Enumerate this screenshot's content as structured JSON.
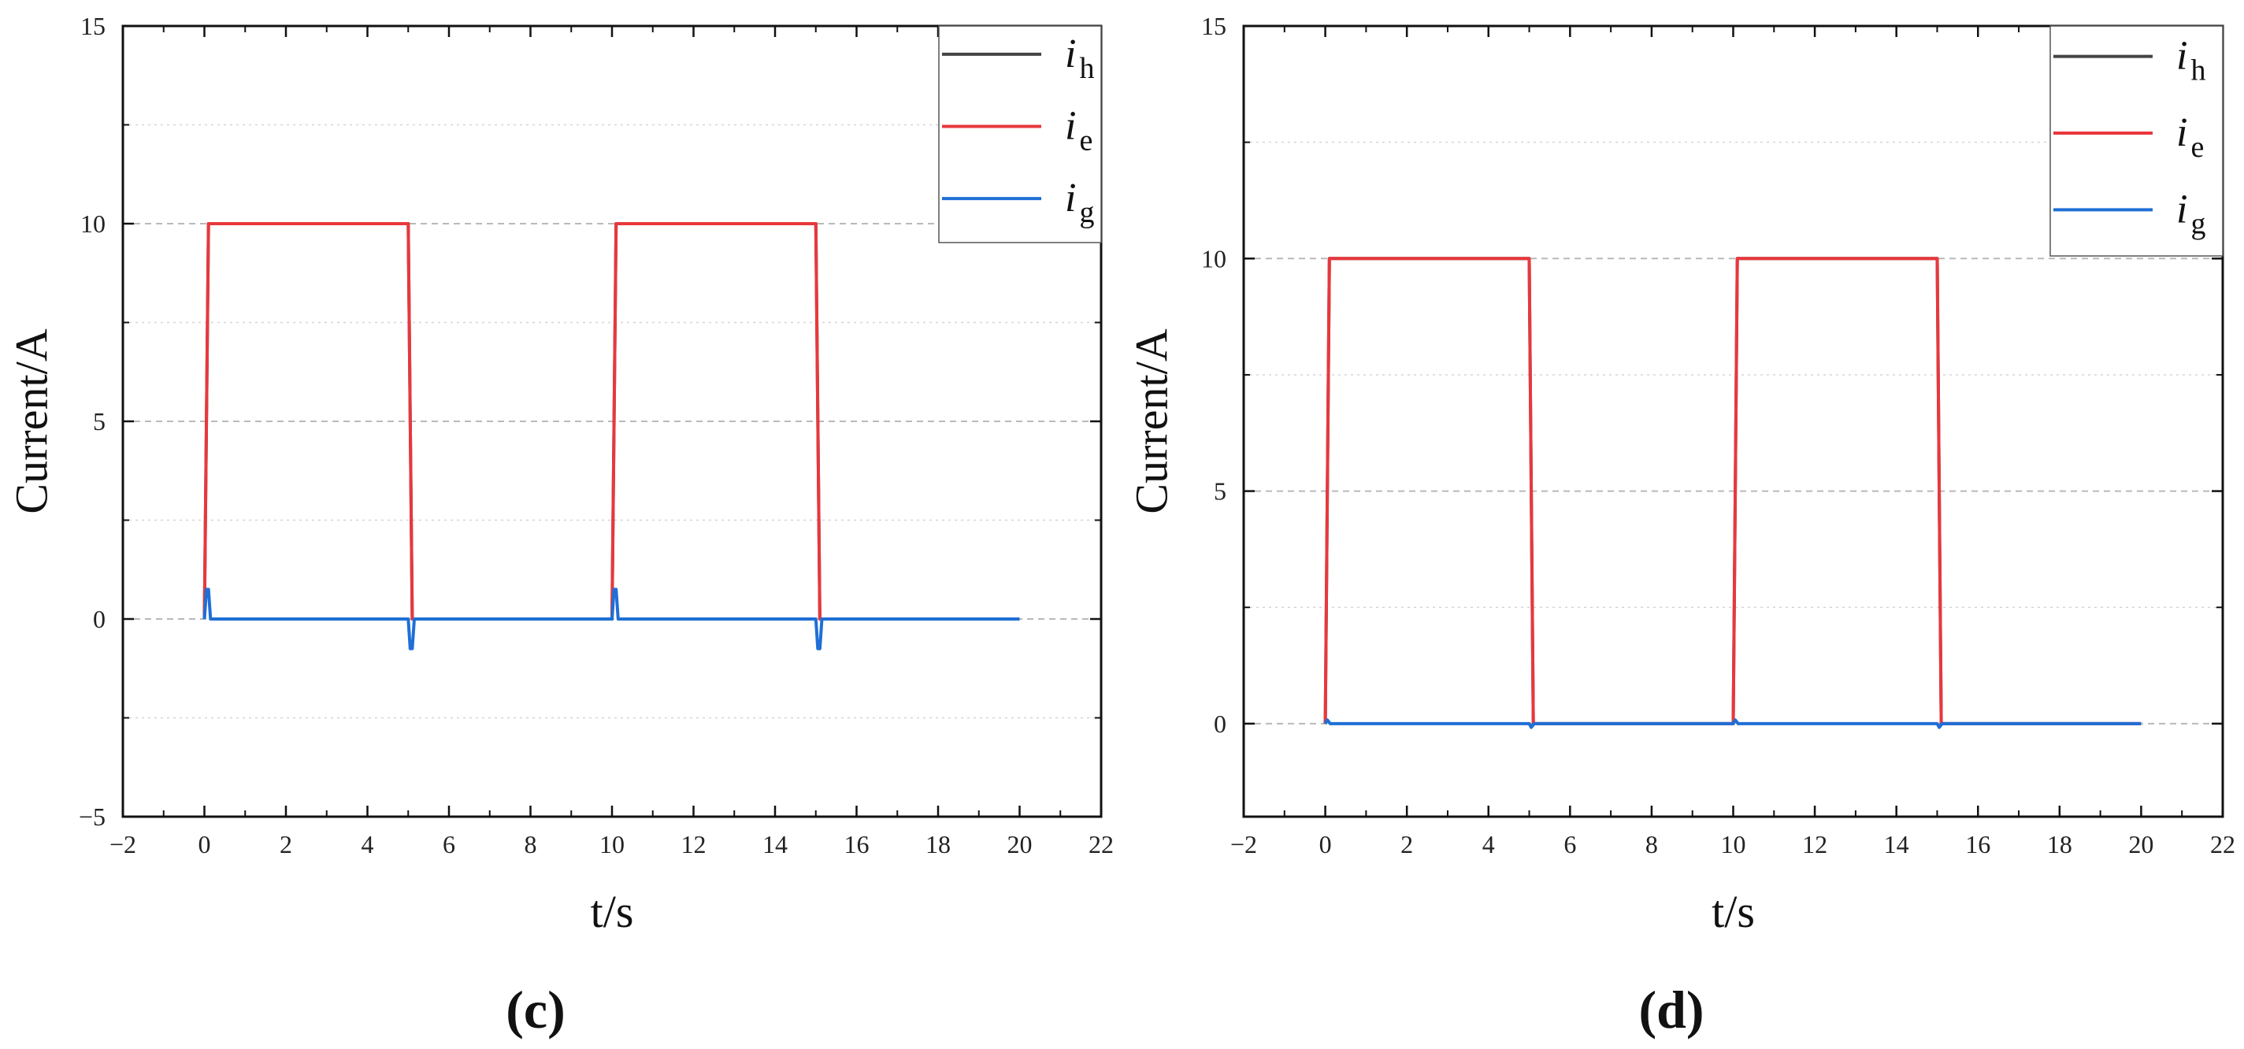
{
  "chart_data": [
    {
      "type": "line",
      "panel_label": "(c)",
      "xlabel": "t/s",
      "ylabel": "Current/A",
      "xlim": [
        -2,
        22
      ],
      "ylim": [
        -5,
        15
      ],
      "xticks": [
        -2,
        0,
        2,
        4,
        6,
        8,
        10,
        12,
        14,
        16,
        18,
        20,
        22
      ],
      "xtick_labels": [
        "−2",
        "0",
        "2",
        "4",
        "6",
        "8",
        "10",
        "12",
        "14",
        "16",
        "18",
        "20",
        "22"
      ],
      "yticks": [
        -5,
        0,
        5,
        10,
        15
      ],
      "ytick_labels": [
        "−5",
        "0",
        "5",
        "10",
        "15"
      ],
      "grid": true,
      "legend_position": "top-right",
      "legend": [
        {
          "symbol": "i",
          "subscript": "h",
          "color": "#444444"
        },
        {
          "symbol": "i",
          "subscript": "e",
          "color": "#e8383d"
        },
        {
          "symbol": "i",
          "subscript": "g",
          "color": "#1f6fd6"
        }
      ],
      "series": [
        {
          "name": "ih",
          "color": "#444444",
          "x": [
            0,
            0.1,
            5.0,
            5.1,
            10.0,
            10.1,
            15.0,
            15.1,
            20.0
          ],
          "y": [
            0,
            10,
            10,
            0,
            0,
            10,
            10,
            0,
            0
          ]
        },
        {
          "name": "ie",
          "color": "#e8383d",
          "x": [
            0,
            0.1,
            5.0,
            5.1,
            10.0,
            10.1,
            15.0,
            15.1,
            20.0
          ],
          "y": [
            0,
            10,
            10,
            0,
            0,
            10,
            10,
            0,
            0
          ]
        },
        {
          "name": "ig",
          "color": "#1f6fd6",
          "x": [
            0,
            0.05,
            0.1,
            0.15,
            0.2,
            5.0,
            5.05,
            5.1,
            5.15,
            10.0,
            10.05,
            10.1,
            10.15,
            10.2,
            15.0,
            15.05,
            15.1,
            15.15,
            20.0
          ],
          "y": [
            0,
            0.75,
            0.75,
            0,
            0,
            0,
            -0.75,
            -0.75,
            0,
            0,
            0.75,
            0.75,
            0,
            0,
            0,
            -0.75,
            -0.75,
            0,
            0
          ]
        }
      ]
    },
    {
      "type": "line",
      "panel_label": "(d)",
      "xlabel": "t/s",
      "ylabel": "Current/A",
      "xlim": [
        -2,
        22
      ],
      "ylim": [
        -2,
        15
      ],
      "xticks": [
        -2,
        0,
        2,
        4,
        6,
        8,
        10,
        12,
        14,
        16,
        18,
        20,
        22
      ],
      "xtick_labels": [
        "−2",
        "0",
        "2",
        "4",
        "6",
        "8",
        "10",
        "12",
        "14",
        "16",
        "18",
        "20",
        "22"
      ],
      "yticks": [
        0,
        5,
        10,
        15
      ],
      "ytick_labels": [
        "0",
        "5",
        "10",
        "15"
      ],
      "grid": true,
      "legend_position": "top-right",
      "legend": [
        {
          "symbol": "i",
          "subscript": "h",
          "color": "#444444"
        },
        {
          "symbol": "i",
          "subscript": "e",
          "color": "#e8383d"
        },
        {
          "symbol": "i",
          "subscript": "g",
          "color": "#1f6fd6"
        }
      ],
      "series": [
        {
          "name": "ih",
          "color": "#444444",
          "x": [
            0,
            0.1,
            5.0,
            5.1,
            10.0,
            10.1,
            15.0,
            15.1,
            20.0
          ],
          "y": [
            0,
            10,
            10,
            0,
            0,
            10,
            10,
            0,
            0
          ]
        },
        {
          "name": "ie",
          "color": "#e8383d",
          "x": [
            0,
            0.1,
            5.0,
            5.1,
            10.0,
            10.1,
            15.0,
            15.1,
            20.0
          ],
          "y": [
            0,
            10,
            10,
            0,
            0,
            10,
            10,
            0,
            0
          ]
        },
        {
          "name": "ig",
          "color": "#1f6fd6",
          "x": [
            0,
            0.05,
            0.12,
            5.0,
            5.05,
            5.12,
            10.0,
            10.05,
            10.12,
            15.0,
            15.05,
            15.12,
            20.0
          ],
          "y": [
            0,
            0.08,
            0,
            0,
            -0.08,
            0,
            0,
            0.08,
            0,
            0,
            -0.08,
            0,
            0
          ]
        }
      ]
    }
  ]
}
